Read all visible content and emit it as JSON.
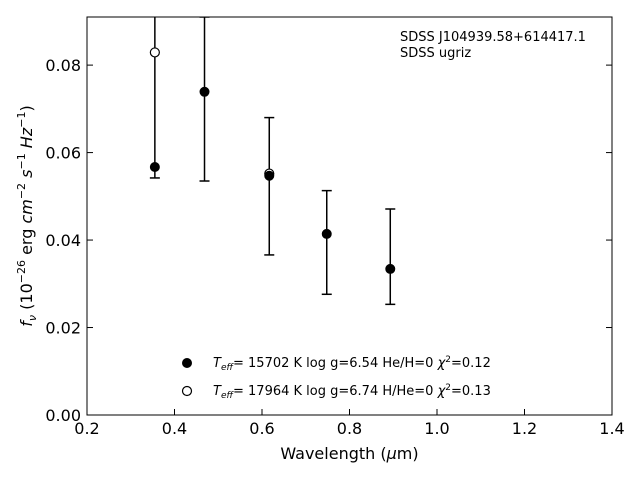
{
  "chart_data": {
    "type": "scatter",
    "title": "",
    "xlabel": "Wavelength (μm)",
    "ylabel": "fν (10⁻²⁶ erg cm⁻² s⁻¹ Hz⁻¹)",
    "xlim": [
      0.2,
      1.4
    ],
    "ylim": [
      0.0,
      0.091
    ],
    "xticks": [
      "0.2",
      "0.4",
      "0.6",
      "0.8",
      "1.0",
      "1.2",
      "1.4"
    ],
    "yticks": [
      "0.00",
      "0.02",
      "0.04",
      "0.06",
      "0.08"
    ],
    "grid": false,
    "legend_position": "bottom-center",
    "annotation": {
      "object": "SDSS J104939.58+614417.1",
      "photometry": "SDSS ugriz"
    },
    "observed": {
      "x": [
        0.3551,
        0.4686,
        0.6166,
        0.748,
        0.8932
      ],
      "y": [
        0.0567,
        0.0739,
        0.0547,
        0.0414,
        0.0334
      ],
      "yerr_low": [
        0.0025,
        0.0204,
        0.0181,
        0.0138,
        0.0081
      ],
      "yerr_high": [
        0.0344,
        0.0171,
        0.0133,
        0.0099,
        0.0137
      ]
    },
    "series": [
      {
        "name": "Teff= 15702 K  log g=6.54  He/H=0  χ²=0.12",
        "marker": "filled-circle",
        "x": [
          0.3551,
          0.4686,
          0.6166,
          0.748,
          0.8932
        ],
        "y": [
          0.0567,
          0.0739,
          0.0547,
          0.0414,
          0.0334
        ]
      },
      {
        "name": "Teff= 17964 K  log g=6.74  H/He=0  χ²=0.13",
        "marker": "open-circle",
        "x": [
          0.3551,
          0.6166
        ],
        "y": [
          0.0829,
          0.0552
        ]
      }
    ]
  }
}
